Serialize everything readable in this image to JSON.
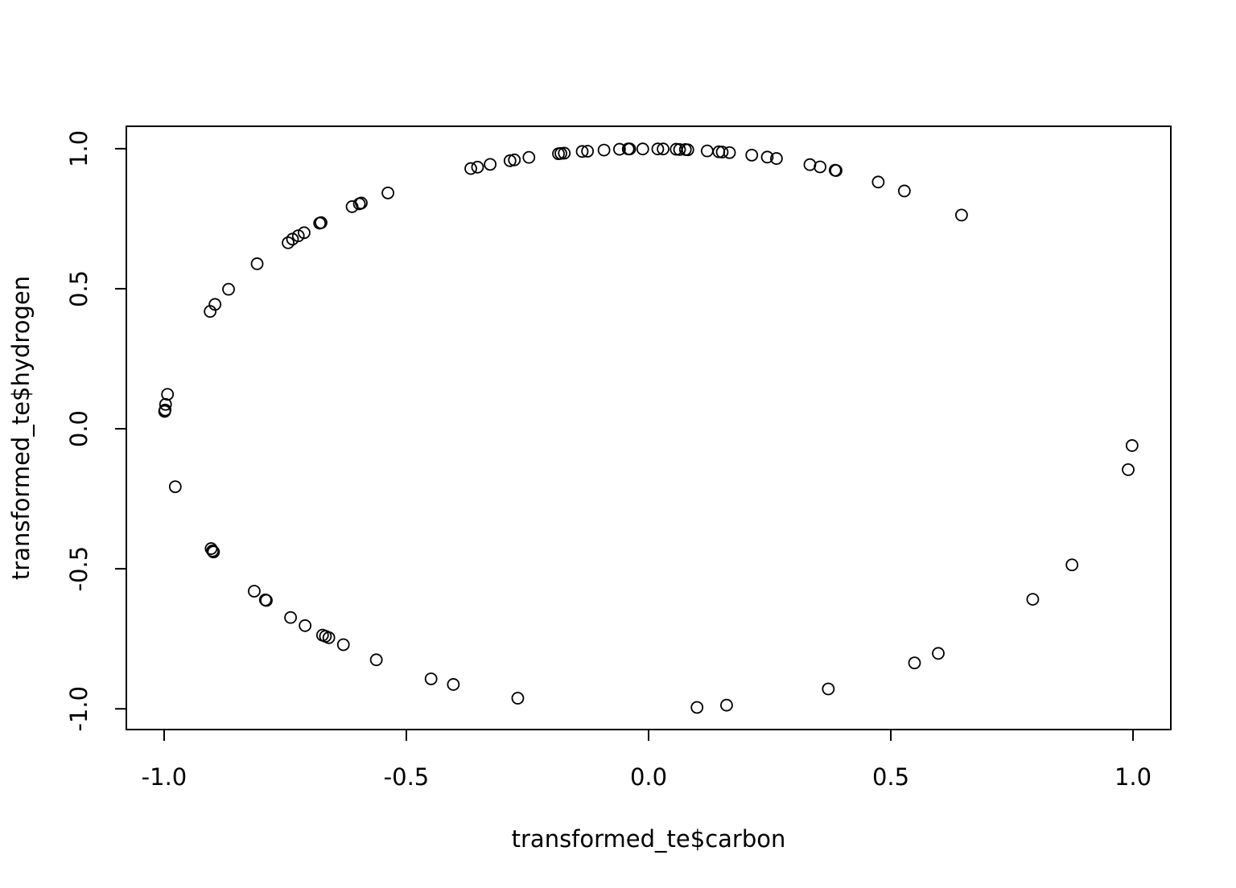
{
  "chart_data": {
    "type": "scatter",
    "title": "",
    "xlabel": "transformed_te$carbon",
    "ylabel": "transformed_te$hydrogen",
    "xlim": [
      -1.078,
      1.078
    ],
    "ylim": [
      -1.074,
      1.08
    ],
    "xticks": [
      -1.0,
      -0.5,
      0.0,
      0.5,
      1.0
    ],
    "xtick_labels": [
      "-1.0",
      "-0.5",
      "0.0",
      "0.5",
      "1.0"
    ],
    "yticks": [
      -1.0,
      -0.5,
      0.0,
      0.5,
      1.0
    ],
    "ytick_labels": [
      "-1.0",
      "-0.5",
      "0.0",
      "0.5",
      "1.0"
    ],
    "grid": false,
    "marker": "open-circle",
    "color": "#000000",
    "points": [
      {
        "x": -0.999,
        "y": 0.062
      },
      {
        "x": -0.998,
        "y": 0.067
      },
      {
        "x": -0.997,
        "y": 0.087
      },
      {
        "x": -0.993,
        "y": 0.123
      },
      {
        "x": -0.977,
        "y": -0.207
      },
      {
        "x": -0.905,
        "y": 0.419
      },
      {
        "x": -0.895,
        "y": 0.444
      },
      {
        "x": -0.867,
        "y": 0.498
      },
      {
        "x": -0.903,
        "y": -0.428
      },
      {
        "x": -0.9,
        "y": -0.436
      },
      {
        "x": -0.898,
        "y": -0.44
      },
      {
        "x": -0.808,
        "y": 0.589
      },
      {
        "x": -0.814,
        "y": -0.58
      },
      {
        "x": -0.791,
        "y": -0.611
      },
      {
        "x": -0.789,
        "y": -0.613
      },
      {
        "x": -0.744,
        "y": 0.664
      },
      {
        "x": -0.735,
        "y": 0.677
      },
      {
        "x": -0.723,
        "y": 0.689
      },
      {
        "x": -0.711,
        "y": 0.7
      },
      {
        "x": -0.679,
        "y": 0.734
      },
      {
        "x": -0.676,
        "y": 0.736
      },
      {
        "x": -0.739,
        "y": -0.674
      },
      {
        "x": -0.709,
        "y": -0.703
      },
      {
        "x": -0.673,
        "y": -0.737
      },
      {
        "x": -0.667,
        "y": -0.741
      },
      {
        "x": -0.66,
        "y": -0.746
      },
      {
        "x": -0.63,
        "y": -0.771
      },
      {
        "x": -0.612,
        "y": 0.793
      },
      {
        "x": -0.597,
        "y": 0.803
      },
      {
        "x": -0.593,
        "y": 0.806
      },
      {
        "x": -0.538,
        "y": 0.842
      },
      {
        "x": -0.562,
        "y": -0.825
      },
      {
        "x": -0.449,
        "y": -0.893
      },
      {
        "x": -0.403,
        "y": -0.913
      },
      {
        "x": -0.367,
        "y": 0.929
      },
      {
        "x": -0.353,
        "y": 0.934
      },
      {
        "x": -0.327,
        "y": 0.944
      },
      {
        "x": -0.286,
        "y": 0.957
      },
      {
        "x": -0.277,
        "y": 0.96
      },
      {
        "x": -0.247,
        "y": 0.969
      },
      {
        "x": -0.27,
        "y": -0.962
      },
      {
        "x": -0.186,
        "y": 0.982
      },
      {
        "x": -0.181,
        "y": 0.983
      },
      {
        "x": -0.174,
        "y": 0.984
      },
      {
        "x": -0.137,
        "y": 0.99
      },
      {
        "x": -0.126,
        "y": 0.991
      },
      {
        "x": -0.092,
        "y": 0.995
      },
      {
        "x": -0.06,
        "y": 0.998
      },
      {
        "x": -0.042,
        "y": 0.999
      },
      {
        "x": -0.039,
        "y": 0.999
      },
      {
        "x": -0.012,
        "y": 0.999
      },
      {
        "x": 0.019,
        "y": 0.999
      },
      {
        "x": 0.03,
        "y": 0.999
      },
      {
        "x": 0.057,
        "y": 0.998
      },
      {
        "x": 0.064,
        "y": 0.997
      },
      {
        "x": 0.076,
        "y": 0.997
      },
      {
        "x": 0.081,
        "y": 0.996
      },
      {
        "x": 0.121,
        "y": 0.992
      },
      {
        "x": 0.145,
        "y": 0.989
      },
      {
        "x": 0.152,
        "y": 0.988
      },
      {
        "x": 0.167,
        "y": 0.986
      },
      {
        "x": 0.213,
        "y": 0.977
      },
      {
        "x": 0.245,
        "y": 0.97
      },
      {
        "x": 0.264,
        "y": 0.965
      },
      {
        "x": 0.1,
        "y": -0.995
      },
      {
        "x": 0.161,
        "y": -0.987
      },
      {
        "x": 0.333,
        "y": 0.943
      },
      {
        "x": 0.354,
        "y": 0.935
      },
      {
        "x": 0.385,
        "y": 0.923
      },
      {
        "x": 0.387,
        "y": 0.922
      },
      {
        "x": 0.371,
        "y": -0.929
      },
      {
        "x": 0.474,
        "y": 0.881
      },
      {
        "x": 0.528,
        "y": 0.849
      },
      {
        "x": 0.549,
        "y": -0.836
      },
      {
        "x": 0.598,
        "y": -0.802
      },
      {
        "x": 0.646,
        "y": 0.763
      },
      {
        "x": 0.793,
        "y": -0.609
      },
      {
        "x": 0.874,
        "y": -0.486
      },
      {
        "x": 0.99,
        "y": -0.146
      },
      {
        "x": 0.998,
        "y": -0.06
      }
    ]
  }
}
